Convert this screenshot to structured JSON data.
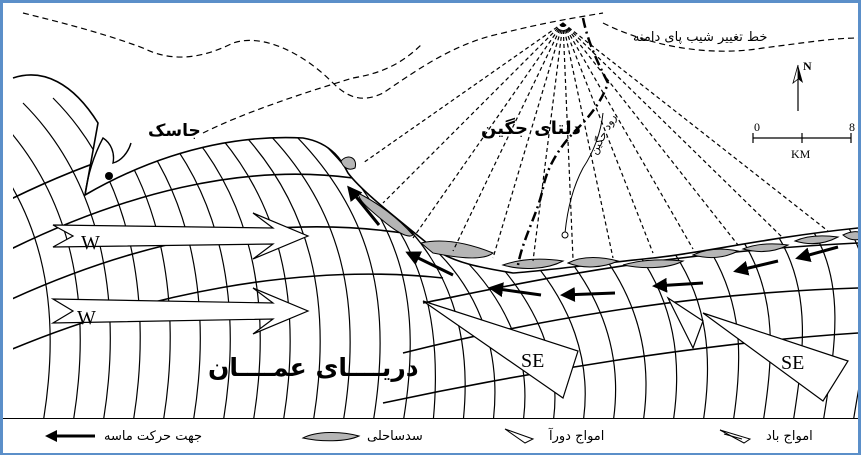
{
  "map": {
    "labels": {
      "slope_line": "خط تغییر شیب پای دامنه",
      "jask": "جاسک",
      "delta": "دلتای جگین",
      "river": "رود جگین",
      "sea": "دریــــای عمــــان",
      "west_1": "W",
      "west_2": "W",
      "se_1": "SE",
      "se_2": "SE"
    },
    "north_arrow": "N",
    "scale": {
      "min": "0",
      "max": "8",
      "unit": "KM"
    }
  },
  "legend": {
    "sand_direction": "جهت حرکت ماسه",
    "barrier": "سدساحلی",
    "swell": "امواج دورآ",
    "wind_waves": "امواج باد"
  },
  "colors": {
    "frame": "#5b8fc9",
    "barrier_fill": "#b5b5b5"
  }
}
